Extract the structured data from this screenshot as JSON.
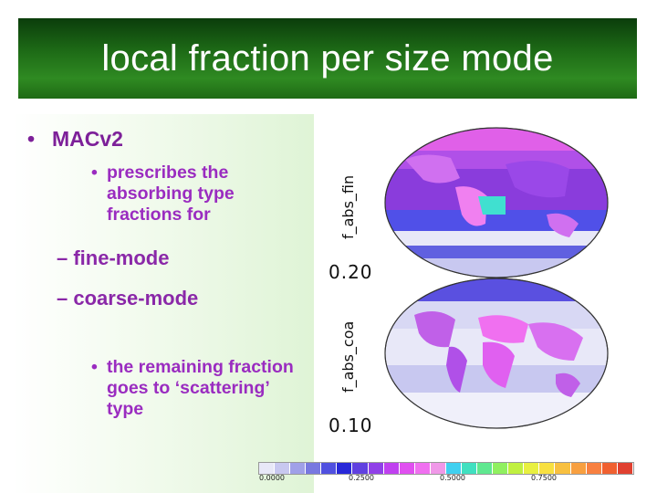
{
  "slide": {
    "title": "local fraction per size mode",
    "bullets": {
      "main": "MACv2",
      "main_dot": "•",
      "sub1": "prescribes the absorbing type fractions for",
      "sub1_dot": "•",
      "dash1": "– fine-mode",
      "dash2": "– coarse-mode",
      "sub2": "the remaining fraction goes to ‘scattering’ type",
      "sub2_dot": "•"
    }
  },
  "maps": {
    "top": {
      "axis_label": "f_abs_fin",
      "value_label": "0.20"
    },
    "bottom": {
      "axis_label": "f_abs_coa",
      "value_label": "0.10"
    }
  },
  "colorbar": {
    "ticks": [
      "0.0000",
      "0.2500",
      "0.5000",
      "0.7500"
    ],
    "colors": [
      "#e8e8f8",
      "#c8c8f0",
      "#a0a0e8",
      "#7878e0",
      "#5050e0",
      "#2828d8",
      "#6040e0",
      "#9040e8",
      "#c040f0",
      "#e050f0",
      "#f070f0",
      "#f098e8",
      "#40d0f0",
      "#40e0c0",
      "#60e890",
      "#90f060",
      "#c0f040",
      "#e8f040",
      "#f8e040",
      "#f8c040",
      "#f8a040",
      "#f88040",
      "#f06030",
      "#e04030"
    ]
  }
}
